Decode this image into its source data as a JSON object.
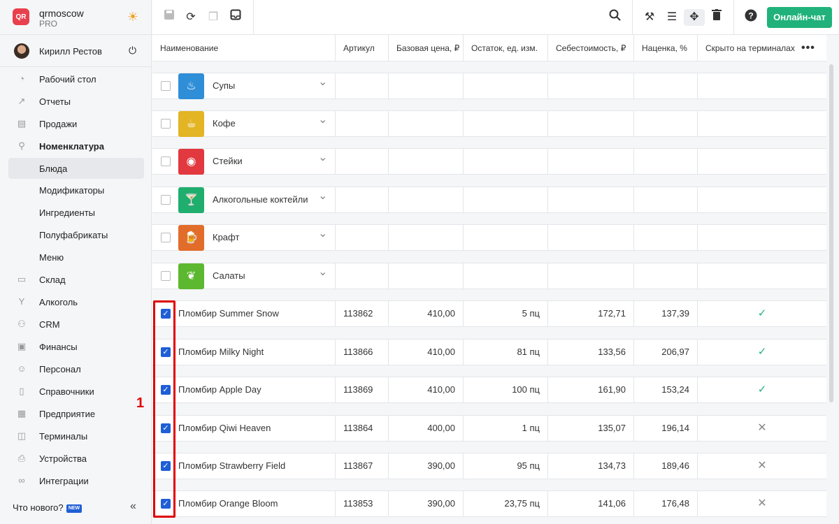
{
  "brand": {
    "name": "qrmoscow",
    "plan": "PRO",
    "logo_text": "QR"
  },
  "user": {
    "name": "Кирилл Рестов"
  },
  "nav": [
    {
      "label": "Рабочий стол",
      "icon": "dashboard-icon"
    },
    {
      "label": "Отчеты",
      "icon": "reports-icon"
    },
    {
      "label": "Продажи",
      "icon": "basket-icon"
    },
    {
      "label": "Номенклатура",
      "icon": "link-icon"
    },
    {
      "label": "Блюда",
      "icon": ""
    },
    {
      "label": "Модификаторы",
      "icon": ""
    },
    {
      "label": "Ингредиенты",
      "icon": ""
    },
    {
      "label": "Полуфабрикаты",
      "icon": ""
    },
    {
      "label": "Меню",
      "icon": ""
    },
    {
      "label": "Склад",
      "icon": "warehouse-icon"
    },
    {
      "label": "Алкоголь",
      "icon": "cocktail-icon"
    },
    {
      "label": "CRM",
      "icon": "crm-icon"
    },
    {
      "label": "Финансы",
      "icon": "wallet-icon"
    },
    {
      "label": "Персонал",
      "icon": "people-icon"
    },
    {
      "label": "Справочники",
      "icon": "book-icon"
    },
    {
      "label": "Предприятие",
      "icon": "building-icon"
    },
    {
      "label": "Терминалы",
      "icon": "terminal-icon"
    },
    {
      "label": "Устройства",
      "icon": "printer-icon"
    },
    {
      "label": "Интеграции",
      "icon": "infinity-icon"
    }
  ],
  "footer": {
    "whats_new": "Что нового?",
    "new_badge": "NEW"
  },
  "toolbar": {
    "chat_label": "Онлайн-чат"
  },
  "columns": [
    "Наименование",
    "Артикул",
    "Базовая цена, ₽",
    "Остаток, ед. изм.",
    "Себестоимость, ₽",
    "Наценка, %",
    "Скрыто на терминалах"
  ],
  "categories": [
    {
      "label": "Супы",
      "color": "#2f8ed8",
      "icon": "soup-icon",
      "glyph": "♨"
    },
    {
      "label": "Кофе",
      "color": "#e3b423",
      "icon": "coffee-icon",
      "glyph": "☕"
    },
    {
      "label": "Стейки",
      "color": "#e2383f",
      "icon": "steak-icon",
      "glyph": "◉"
    },
    {
      "label": "Алкогольные коктейли",
      "color": "#1fae6e",
      "icon": "cocktail-icon",
      "glyph": "🍸"
    },
    {
      "label": "Крафт",
      "color": "#e26d2a",
      "icon": "beer-icon",
      "glyph": "🍺"
    },
    {
      "label": "Салаты",
      "color": "#5cb82f",
      "icon": "salad-icon",
      "glyph": "❦"
    }
  ],
  "items": [
    {
      "name": "Пломбир Summer Snow",
      "sku": "113862",
      "price": "410,00",
      "stock": "5 пц",
      "cost": "172,71",
      "markup": "137,39",
      "hidden": true,
      "checked": true
    },
    {
      "name": "Пломбир Milky Night",
      "sku": "113866",
      "price": "410,00",
      "stock": "81 пц",
      "cost": "133,56",
      "markup": "206,97",
      "hidden": true,
      "checked": true
    },
    {
      "name": "Пломбир Apple Day",
      "sku": "113869",
      "price": "410,00",
      "stock": "100 пц",
      "cost": "161,90",
      "markup": "153,24",
      "hidden": true,
      "checked": true
    },
    {
      "name": "Пломбир Qiwi Heaven",
      "sku": "113864",
      "price": "400,00",
      "stock": "1 пц",
      "cost": "135,07",
      "markup": "196,14",
      "hidden": false,
      "checked": true
    },
    {
      "name": "Пломбир Strawberry Field",
      "sku": "113867",
      "price": "390,00",
      "stock": "95 пц",
      "cost": "134,73",
      "markup": "189,46",
      "hidden": false,
      "checked": true
    },
    {
      "name": "Пломбир Orange Bloom",
      "sku": "113853",
      "price": "390,00",
      "stock": "23,75 пц",
      "cost": "141,06",
      "markup": "176,48",
      "hidden": false,
      "checked": true
    }
  ],
  "annotation": {
    "number": "1",
    "color": "#e00000"
  }
}
